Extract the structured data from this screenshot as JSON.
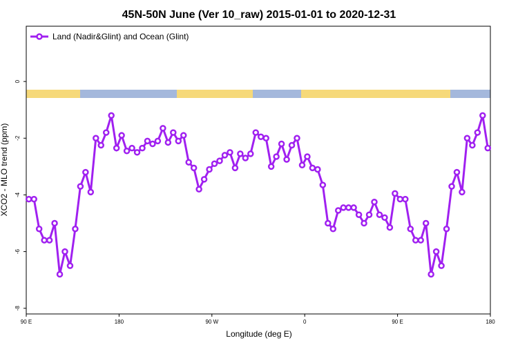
{
  "chart_data": {
    "type": "line",
    "title": "45N-50N June (Ver 10_raw)   2015-01-01 to 2020-12-31",
    "x_label": "Longitude (deg E)",
    "y_label": "XCO2 - MLO trend (ppm)",
    "legend_position": "top-left",
    "xlim": [
      90,
      540
    ],
    "ylim": [
      -8.2,
      1.95
    ],
    "xticks": [
      {
        "value": 90,
        "label": "90 E"
      },
      180,
      {
        "value": 270,
        "label": "90 W"
      },
      {
        "value": 360,
        "label": "0"
      },
      {
        "value": 450,
        "label": "90 E"
      },
      {
        "value": 540,
        "label": "180"
      }
    ],
    "yticks": [
      0,
      -2,
      -4,
      -6,
      -8
    ],
    "x": [
      92.5,
      97.5,
      102.5,
      107.5,
      112.5,
      117.5,
      122.5,
      127.5,
      132.5,
      137.5,
      142.5,
      147.5,
      152.5,
      157.5,
      162.5,
      167.5,
      172.5,
      177.5,
      182.5,
      187.5,
      192.5,
      197.5,
      202.5,
      207.5,
      212.5,
      217.5,
      222.5,
      227.5,
      232.5,
      237.5,
      242.5,
      247.5,
      252.5,
      257.5,
      262.5,
      267.5,
      272.5,
      277.5,
      282.5,
      287.5,
      292.5,
      297.5,
      302.5,
      307.5,
      312.5,
      317.5,
      322.5,
      327.5,
      332.5,
      337.5,
      342.5,
      347.5,
      352.5,
      357.5,
      362.5,
      367.5,
      372.5,
      377.5,
      382.5,
      387.5,
      392.5,
      397.5,
      402.5,
      407.5,
      412.5,
      417.5,
      422.5,
      427.5,
      432.5,
      437.5,
      442.5,
      447.5,
      452.5,
      457.5,
      462.5,
      467.5,
      472.5,
      477.5,
      482.5,
      487.5,
      492.5,
      497.5,
      502.5,
      507.5,
      512.5,
      517.5,
      522.5,
      527.5,
      532.5,
      537.5
    ],
    "series": [
      {
        "name": "Land (Nadir&Glint) and Ocean (Glint)",
        "color": "#a020f0",
        "values": [
          -4.15,
          -4.15,
          -5.2,
          -5.6,
          -5.6,
          -5.0,
          -6.8,
          -6.0,
          -6.5,
          -5.2,
          -3.7,
          -3.2,
          -3.9,
          -2.0,
          -2.25,
          -1.8,
          -1.2,
          -2.35,
          -1.9,
          -2.45,
          -2.35,
          -2.5,
          -2.35,
          -2.1,
          -2.2,
          -2.1,
          -1.65,
          -2.15,
          -1.8,
          -2.1,
          -1.9,
          -2.85,
          -3.05,
          -3.8,
          -3.45,
          -3.1,
          -2.9,
          -2.8,
          -2.6,
          -2.5,
          -3.05,
          -2.55,
          -2.7,
          -2.55,
          -1.8,
          -1.95,
          -2.0,
          -3.0,
          -2.65,
          -2.2,
          -2.75,
          -2.25,
          -2.0,
          -2.95,
          -2.65,
          -3.05,
          -3.1,
          -3.65,
          -5.0,
          -5.2,
          -4.55,
          -4.45,
          -4.45,
          -4.45,
          -4.7,
          -5.0,
          -4.7,
          -4.25,
          -4.7,
          -4.8,
          -5.15,
          -3.95,
          -4.15,
          -4.15,
          -5.2,
          -5.6,
          -5.6,
          -5.0,
          -6.8,
          -6.0,
          -6.5,
          -5.2,
          -3.7,
          -3.2,
          -3.9,
          -2.0,
          -2.25,
          -1.8,
          -1.2,
          -2.35
        ]
      }
    ]
  }
}
